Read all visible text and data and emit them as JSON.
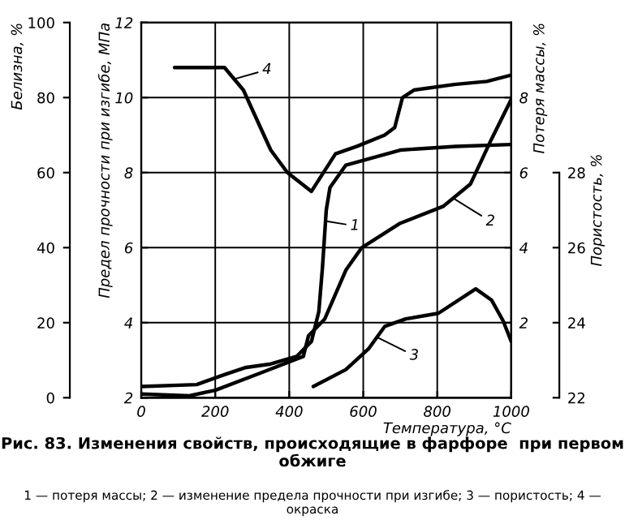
{
  "chart_data": [
    {
      "type": "line",
      "title": "Рис. 83. Изменения свойств, происходящие в фарфоре  при первом обжиге",
      "xlabel": "Температура, °C",
      "ylabel": "Предел прочности при изгибе, МПа",
      "y2label": "Потеря массы, %",
      "y3label": "Пористость, %",
      "xlim": [
        0,
        1000
      ],
      "xticks": [
        0,
        200,
        400,
        600,
        800,
        1000
      ],
      "ylim": [
        2,
        12
      ],
      "yticks": [
        2,
        4,
        6,
        8,
        10,
        12
      ],
      "y2lim": [
        0,
        10
      ],
      "y2ticks": [
        2,
        4,
        6,
        8
      ],
      "y3lim": [
        22,
        32
      ],
      "y3ticks": [
        22,
        24,
        26,
        28
      ],
      "grid": true,
      "series": [
        {
          "color": "#000000",
          "axis": "y2",
          "x": [
            0,
            150,
            220,
            280,
            350,
            420,
            460,
            480,
            490,
            500,
            510,
            553,
            700,
            850,
            1000
          ],
          "values": [
            0.3,
            0.35,
            0.6,
            0.8,
            0.9,
            1.1,
            1.5,
            2.3,
            3.5,
            5.0,
            5.6,
            6.2,
            6.6,
            6.7,
            6.75
          ]
        },
        {
          "color": "#000000",
          "x": [
            0,
            130,
            200,
            320,
            438,
            452,
            496,
            553,
            596,
            700,
            816,
            890,
            947,
            1000
          ],
          "values": [
            2.1,
            2.05,
            2.2,
            2.65,
            3.1,
            3.65,
            4.1,
            5.4,
            6.0,
            6.65,
            7.1,
            7.7,
            8.9,
            9.95
          ]
        },
        {
          "color": "#000000",
          "axis": "y3",
          "x": [
            465,
            553,
            614,
            658,
            715,
            803,
            904,
            947,
            978,
            1000
          ],
          "values": [
            22.3,
            22.75,
            23.3,
            23.9,
            24.1,
            24.25,
            24.9,
            24.6,
            24.05,
            23.5
          ]
        }
      ],
      "annotations": [
        {
          "text": "1",
          "x": 504,
          "y": 6.7
        },
        {
          "text": "2",
          "x": 846,
          "y": 7.3
        },
        {
          "text": "3",
          "x": 640,
          "y": 3.6
        },
        "1 — потеря массы; 2 — изменение предела прочности при изгибе; 3 — пористость; 4 — окраска"
      ]
    },
    {
      "type": "line",
      "ylabel": "Белизна, %",
      "xlim": [
        0,
        1000
      ],
      "ylim": [
        0,
        100
      ],
      "yticks": [
        0,
        20,
        40,
        60,
        80,
        100
      ],
      "tick_labels": "y",
      "series": [
        {
          "color": "#000000",
          "x": [
            90,
            225,
            276,
            350,
            395,
            460,
            525,
            583,
            658,
            685,
            706,
            737,
            846,
            934,
            1000
          ],
          "values": [
            88,
            88,
            82,
            66,
            60,
            55,
            65,
            67,
            70,
            72,
            80,
            82,
            83.5,
            84.3,
            86
          ]
        }
      ],
      "annotations": [
        {
          "text": "4",
          "x": 254,
          "y": 85
        }
      ]
    }
  ]
}
